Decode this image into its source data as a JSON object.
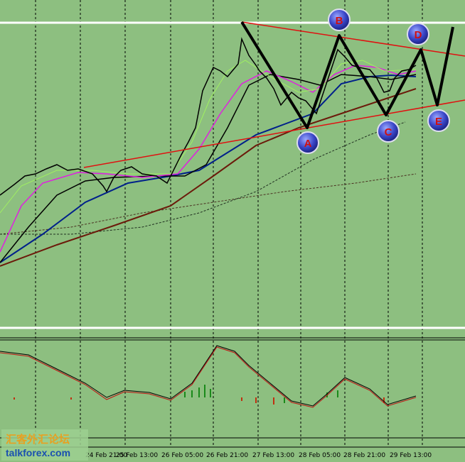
{
  "x_axis": {
    "labels": [
      "24 Feb 21:00",
      "25 Feb 13:00",
      "26 Feb 05:00",
      "26 Feb 21:00",
      "27 Feb 13:00",
      "28 Feb 05:00",
      "28 Feb 21:00",
      "29 Feb 13:00"
    ]
  },
  "pattern_points": {
    "labels": [
      "A",
      "B",
      "C",
      "D",
      "E"
    ]
  },
  "watermark": {
    "chinese": "汇客外汇论坛",
    "site": "talkforex.com"
  }
}
